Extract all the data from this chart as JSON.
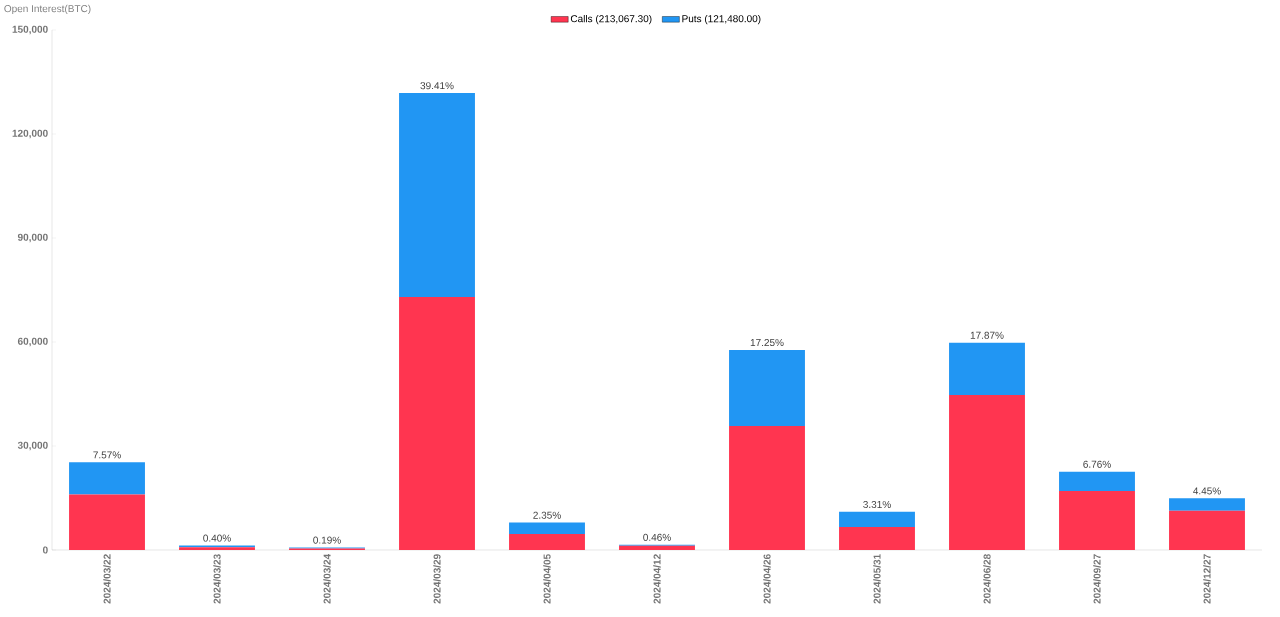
{
  "chart_data": {
    "type": "bar",
    "stacked": true,
    "ylabel": "Open Interest(BTC)",
    "categories": [
      "2024/03/22",
      "2024/03/23",
      "2024/03/24",
      "2024/03/29",
      "2024/04/05",
      "2024/04/12",
      "2024/04/26",
      "2024/05/31",
      "2024/06/28",
      "2024/09/27",
      "2024/12/27"
    ],
    "series": [
      {
        "name": "Calls (213,067.30)",
        "color": "#ff3550",
        "values": [
          16000,
          800,
          400,
          73000,
          4600,
          1200,
          35800,
          6600,
          44700,
          17000,
          11300
        ]
      },
      {
        "name": "Puts (121,480.00)",
        "color": "#2196f3",
        "values": [
          9300,
          500,
          300,
          58800,
          3300,
          300,
          21900,
          4400,
          15100,
          5600,
          3600
        ]
      }
    ],
    "annotations": [
      {
        "text": "7.57%",
        "x": "2024/03/22",
        "y": 25300
      },
      {
        "text": "0.40%",
        "x": "2024/03/23",
        "y": 1300
      },
      {
        "text": "0.19%",
        "x": "2024/03/24",
        "y": 700
      },
      {
        "text": "39.41%",
        "x": "2024/03/29",
        "y": 131800
      },
      {
        "text": "2.35%",
        "x": "2024/04/05",
        "y": 7900
      },
      {
        "text": "0.46%",
        "x": "2024/04/12",
        "y": 1500
      },
      {
        "text": "17.25%",
        "x": "2024/04/26",
        "y": 57700
      },
      {
        "text": "3.31%",
        "x": "2024/05/31",
        "y": 11000
      },
      {
        "text": "17.87%",
        "x": "2024/06/28",
        "y": 59800
      },
      {
        "text": "6.76%",
        "x": "2024/09/27",
        "y": 22600
      },
      {
        "text": "4.45%",
        "x": "2024/12/27",
        "y": 14900
      }
    ],
    "ylim": [
      0,
      150000
    ],
    "yticks": [
      0,
      {
        "value": 30000,
        "label": "30,000"
      },
      {
        "value": 60000,
        "label": "60,000"
      },
      {
        "value": 90000,
        "label": "90,000"
      },
      {
        "value": 120000,
        "label": "120,000"
      },
      {
        "value": 150000,
        "label": "150,000"
      }
    ],
    "legend": "top"
  }
}
